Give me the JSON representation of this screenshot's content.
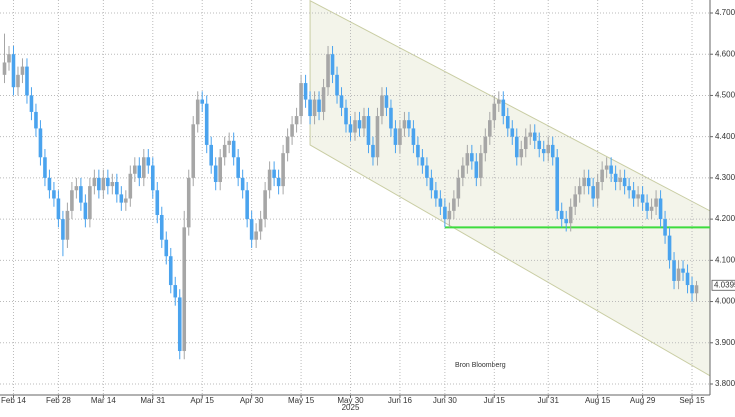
{
  "chart_data": {
    "type": "candlestick",
    "up_color": "#a6a6a6",
    "down_color": "#4aa3ee",
    "ylim": [
      3.8,
      4.7
    ],
    "yticks": [
      {
        "value": 3.8,
        "label": "3.8000"
      },
      {
        "value": 3.9,
        "label": "3.9000"
      },
      {
        "value": 4.0,
        "label": "4.0000"
      },
      {
        "value": 4.1,
        "label": "4.1000"
      },
      {
        "value": 4.2,
        "label": "4.2000"
      },
      {
        "value": 4.3,
        "label": "4.3000"
      },
      {
        "value": 4.4,
        "label": "4.4000"
      },
      {
        "value": 4.5,
        "label": "4.5000"
      },
      {
        "value": 4.6,
        "label": "4.6000"
      },
      {
        "value": 4.7,
        "label": "4.7000"
      }
    ],
    "xlim": [
      -1,
      157
    ],
    "xticks": [
      {
        "value": 2,
        "label": "Feb 14"
      },
      {
        "value": 12,
        "label": "Feb 28"
      },
      {
        "value": 22,
        "label": "Mar 14"
      },
      {
        "value": 33,
        "label": "Mar 31"
      },
      {
        "value": 44,
        "label": "Apr 15"
      },
      {
        "value": 55,
        "label": "Apr 30"
      },
      {
        "value": 66,
        "label": "May 15"
      },
      {
        "value": 77,
        "label": "May 30"
      },
      {
        "value": 88,
        "label": "Jun 16"
      },
      {
        "value": 98,
        "label": "Jun 30"
      },
      {
        "value": 109,
        "label": "Jul 15"
      },
      {
        "value": 121,
        "label": "Jul 31"
      },
      {
        "value": 132,
        "label": "Aug 15"
      },
      {
        "value": 142,
        "label": "Aug 29"
      },
      {
        "value": 153,
        "label": "Sep 15"
      }
    ],
    "year_label": "2025",
    "grid": true,
    "source": "Bron Bloomberg",
    "channel": {
      "color": "#f3f4ea",
      "edge_color": "#c9cda3",
      "upper": [
        [
          68,
          4.73
        ],
        [
          157,
          4.22
        ]
      ],
      "lower": [
        [
          68,
          4.38
        ],
        [
          157,
          3.82
        ]
      ]
    },
    "support": {
      "value": 4.18,
      "x": [
        98,
        157
      ],
      "color": "#3ddc3d"
    },
    "ohlc": [
      [
        4.55,
        4.65,
        4.53,
        4.58
      ],
      [
        4.58,
        4.62,
        4.56,
        4.6
      ],
      [
        4.6,
        4.62,
        4.5,
        4.52
      ],
      [
        4.52,
        4.57,
        4.5,
        4.55
      ],
      [
        4.55,
        4.59,
        4.53,
        4.57
      ],
      [
        4.57,
        4.59,
        4.48,
        4.5
      ],
      [
        4.5,
        4.52,
        4.44,
        4.46
      ],
      [
        4.46,
        4.48,
        4.4,
        4.42
      ],
      [
        4.42,
        4.44,
        4.33,
        4.35
      ],
      [
        4.35,
        4.37,
        4.28,
        4.3
      ],
      [
        4.3,
        4.32,
        4.25,
        4.27
      ],
      [
        4.27,
        4.29,
        4.23,
        4.25
      ],
      [
        4.25,
        4.27,
        4.18,
        4.2
      ],
      [
        4.2,
        4.22,
        4.11,
        4.15
      ],
      [
        4.15,
        4.24,
        4.13,
        4.22
      ],
      [
        4.22,
        4.29,
        4.2,
        4.27
      ],
      [
        4.27,
        4.3,
        4.25,
        4.28
      ],
      [
        4.28,
        4.3,
        4.22,
        4.24
      ],
      [
        4.24,
        4.26,
        4.18,
        4.2
      ],
      [
        4.2,
        4.3,
        4.18,
        4.28
      ],
      [
        4.28,
        4.32,
        4.26,
        4.3
      ],
      [
        4.3,
        4.32,
        4.25,
        4.27
      ],
      [
        4.27,
        4.32,
        4.25,
        4.3
      ],
      [
        4.3,
        4.32,
        4.26,
        4.28
      ],
      [
        4.28,
        4.31,
        4.26,
        4.29
      ],
      [
        4.29,
        4.31,
        4.24,
        4.26
      ],
      [
        4.26,
        4.28,
        4.22,
        4.24
      ],
      [
        4.24,
        4.27,
        4.22,
        4.25
      ],
      [
        4.25,
        4.33,
        4.23,
        4.31
      ],
      [
        4.31,
        4.35,
        4.29,
        4.33
      ],
      [
        4.33,
        4.35,
        4.28,
        4.3
      ],
      [
        4.3,
        4.37,
        4.28,
        4.35
      ],
      [
        4.35,
        4.37,
        4.31,
        4.33
      ],
      [
        4.33,
        4.35,
        4.25,
        4.27
      ],
      [
        4.27,
        4.29,
        4.19,
        4.21
      ],
      [
        4.21,
        4.23,
        4.13,
        4.15
      ],
      [
        4.15,
        4.17,
        4.09,
        4.11
      ],
      [
        4.11,
        4.13,
        4.02,
        4.04
      ],
      [
        4.04,
        4.06,
        3.99,
        4.01
      ],
      [
        4.01,
        4.03,
        3.86,
        3.88
      ],
      [
        3.88,
        4.22,
        3.86,
        4.18
      ],
      [
        4.18,
        4.32,
        4.16,
        4.3
      ],
      [
        4.3,
        4.45,
        4.28,
        4.43
      ],
      [
        4.43,
        4.51,
        4.41,
        4.49
      ],
      [
        4.49,
        4.51,
        4.46,
        4.48
      ],
      [
        4.48,
        4.5,
        4.36,
        4.38
      ],
      [
        4.38,
        4.4,
        4.31,
        4.33
      ],
      [
        4.33,
        4.35,
        4.27,
        4.29
      ],
      [
        4.29,
        4.37,
        4.27,
        4.35
      ],
      [
        4.35,
        4.4,
        4.33,
        4.38
      ],
      [
        4.38,
        4.41,
        4.36,
        4.39
      ],
      [
        4.39,
        4.41,
        4.33,
        4.35
      ],
      [
        4.35,
        4.37,
        4.28,
        4.3
      ],
      [
        4.3,
        4.32,
        4.25,
        4.27
      ],
      [
        4.27,
        4.29,
        4.18,
        4.2
      ],
      [
        4.2,
        4.22,
        4.13,
        4.15
      ],
      [
        4.15,
        4.19,
        4.13,
        4.17
      ],
      [
        4.17,
        4.22,
        4.15,
        4.2
      ],
      [
        4.2,
        4.29,
        4.18,
        4.27
      ],
      [
        4.27,
        4.34,
        4.25,
        4.32
      ],
      [
        4.32,
        4.34,
        4.28,
        4.3
      ],
      [
        4.3,
        4.32,
        4.26,
        4.28
      ],
      [
        4.28,
        4.38,
        4.26,
        4.36
      ],
      [
        4.36,
        4.42,
        4.34,
        4.4
      ],
      [
        4.4,
        4.45,
        4.38,
        4.43
      ],
      [
        4.43,
        4.47,
        4.41,
        4.45
      ],
      [
        4.45,
        4.55,
        4.43,
        4.53
      ],
      [
        4.53,
        4.55,
        4.47,
        4.49
      ],
      [
        4.49,
        4.51,
        4.43,
        4.45
      ],
      [
        4.45,
        4.51,
        4.43,
        4.49
      ],
      [
        4.49,
        4.51,
        4.44,
        4.46
      ],
      [
        4.46,
        4.54,
        4.44,
        4.52
      ],
      [
        4.52,
        4.62,
        4.5,
        4.6
      ],
      [
        4.6,
        4.62,
        4.53,
        4.55
      ],
      [
        4.55,
        4.57,
        4.48,
        4.5
      ],
      [
        4.5,
        4.52,
        4.45,
        4.47
      ],
      [
        4.47,
        4.49,
        4.41,
        4.43
      ],
      [
        4.43,
        4.45,
        4.39,
        4.41
      ],
      [
        4.41,
        4.46,
        4.39,
        4.44
      ],
      [
        4.44,
        4.46,
        4.4,
        4.42
      ],
      [
        4.42,
        4.47,
        4.4,
        4.45
      ],
      [
        4.45,
        4.47,
        4.36,
        4.38
      ],
      [
        4.38,
        4.4,
        4.33,
        4.35
      ],
      [
        4.35,
        4.47,
        4.33,
        4.45
      ],
      [
        4.45,
        4.52,
        4.43,
        4.5
      ],
      [
        4.5,
        4.52,
        4.45,
        4.47
      ],
      [
        4.47,
        4.49,
        4.4,
        4.42
      ],
      [
        4.42,
        4.44,
        4.36,
        4.38
      ],
      [
        4.38,
        4.44,
        4.36,
        4.42
      ],
      [
        4.42,
        4.46,
        4.4,
        4.44
      ],
      [
        4.44,
        4.46,
        4.4,
        4.42
      ],
      [
        4.42,
        4.44,
        4.36,
        4.38
      ],
      [
        4.38,
        4.4,
        4.33,
        4.35
      ],
      [
        4.35,
        4.37,
        4.31,
        4.33
      ],
      [
        4.33,
        4.35,
        4.28,
        4.3
      ],
      [
        4.3,
        4.32,
        4.25,
        4.27
      ],
      [
        4.27,
        4.29,
        4.23,
        4.25
      ],
      [
        4.25,
        4.27,
        4.21,
        4.23
      ],
      [
        4.23,
        4.25,
        4.18,
        4.2
      ],
      [
        4.2,
        4.24,
        4.18,
        4.22
      ],
      [
        4.22,
        4.27,
        4.2,
        4.25
      ],
      [
        4.25,
        4.32,
        4.23,
        4.3
      ],
      [
        4.3,
        4.35,
        4.28,
        4.33
      ],
      [
        4.33,
        4.38,
        4.31,
        4.36
      ],
      [
        4.36,
        4.38,
        4.32,
        4.34
      ],
      [
        4.34,
        4.36,
        4.28,
        4.3
      ],
      [
        4.3,
        4.38,
        4.28,
        4.36
      ],
      [
        4.36,
        4.42,
        4.34,
        4.4
      ],
      [
        4.4,
        4.46,
        4.38,
        4.44
      ],
      [
        4.44,
        4.5,
        4.42,
        4.48
      ],
      [
        4.48,
        4.51,
        4.46,
        4.49
      ],
      [
        4.49,
        4.51,
        4.43,
        4.45
      ],
      [
        4.45,
        4.47,
        4.4,
        4.42
      ],
      [
        4.42,
        4.44,
        4.38,
        4.4
      ],
      [
        4.4,
        4.42,
        4.33,
        4.35
      ],
      [
        4.35,
        4.39,
        4.33,
        4.37
      ],
      [
        4.37,
        4.42,
        4.35,
        4.4
      ],
      [
        4.4,
        4.43,
        4.38,
        4.41
      ],
      [
        4.41,
        4.43,
        4.37,
        4.39
      ],
      [
        4.39,
        4.41,
        4.35,
        4.37
      ],
      [
        4.37,
        4.39,
        4.34,
        4.36
      ],
      [
        4.36,
        4.4,
        4.34,
        4.38
      ],
      [
        4.38,
        4.4,
        4.33,
        4.35
      ],
      [
        4.35,
        4.37,
        4.2,
        4.22
      ],
      [
        4.22,
        4.24,
        4.18,
        4.2
      ],
      [
        4.2,
        4.22,
        4.17,
        4.19
      ],
      [
        4.19,
        4.25,
        4.17,
        4.23
      ],
      [
        4.23,
        4.28,
        4.21,
        4.26
      ],
      [
        4.26,
        4.3,
        4.24,
        4.28
      ],
      [
        4.28,
        4.32,
        4.26,
        4.3
      ],
      [
        4.3,
        4.32,
        4.26,
        4.28
      ],
      [
        4.28,
        4.3,
        4.23,
        4.25
      ],
      [
        4.25,
        4.31,
        4.23,
        4.29
      ],
      [
        4.29,
        4.34,
        4.27,
        4.32
      ],
      [
        4.32,
        4.35,
        4.3,
        4.33
      ],
      [
        4.33,
        4.35,
        4.29,
        4.31
      ],
      [
        4.31,
        4.33,
        4.27,
        4.29
      ],
      [
        4.29,
        4.32,
        4.27,
        4.3
      ],
      [
        4.3,
        4.32,
        4.26,
        4.28
      ],
      [
        4.28,
        4.3,
        4.25,
        4.27
      ],
      [
        4.27,
        4.29,
        4.23,
        4.25
      ],
      [
        4.25,
        4.28,
        4.23,
        4.26
      ],
      [
        4.26,
        4.28,
        4.22,
        4.24
      ],
      [
        4.24,
        4.26,
        4.2,
        4.22
      ],
      [
        4.22,
        4.25,
        4.2,
        4.23
      ],
      [
        4.23,
        4.27,
        4.21,
        4.25
      ],
      [
        4.25,
        4.27,
        4.18,
        4.2
      ],
      [
        4.2,
        4.22,
        4.14,
        4.16
      ],
      [
        4.16,
        4.18,
        4.08,
        4.1
      ],
      [
        4.1,
        4.12,
        4.03,
        4.05
      ],
      [
        4.05,
        4.1,
        4.03,
        4.08
      ],
      [
        4.08,
        4.1,
        4.05,
        4.07
      ],
      [
        4.07,
        4.09,
        4.02,
        4.04
      ],
      [
        4.04,
        4.06,
        4.0,
        4.02
      ],
      [
        4.02,
        4.05,
        4.0,
        4.0395
      ]
    ]
  }
}
